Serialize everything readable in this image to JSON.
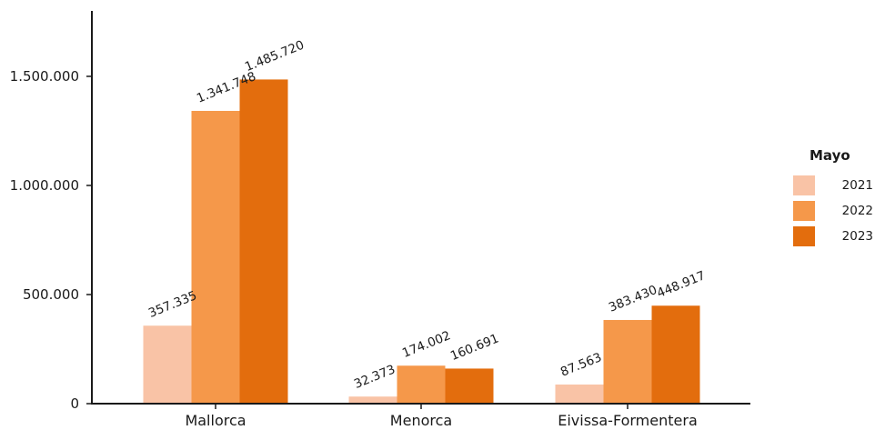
{
  "chart_data": {
    "type": "bar",
    "categories": [
      "Mallorca",
      "Menorca",
      "Eivissa-Formentera"
    ],
    "series": [
      {
        "name": "2021",
        "color": "#f9c3a6",
        "values": [
          357335,
          32373,
          87563
        ],
        "labels": [
          "357.335",
          "32.373",
          "87.563"
        ]
      },
      {
        "name": "2022",
        "color": "#f5984a",
        "values": [
          1341748,
          174002,
          383430
        ],
        "labels": [
          "1.341.748",
          "174.002",
          "383.430"
        ]
      },
      {
        "name": "2023",
        "color": "#e36d0d",
        "values": [
          1485720,
          160691,
          448917
        ],
        "labels": [
          "1.485.720",
          "160.691",
          "448.917"
        ]
      }
    ],
    "ylim": [
      0,
      1800000
    ],
    "yticks": [
      0,
      500000,
      1000000,
      1500000
    ],
    "ytick_labels": [
      "0",
      "500.000",
      "1.000.000",
      "1.500.000"
    ],
    "legend_title": "Mayo",
    "legend_position": "right",
    "grid": false
  }
}
